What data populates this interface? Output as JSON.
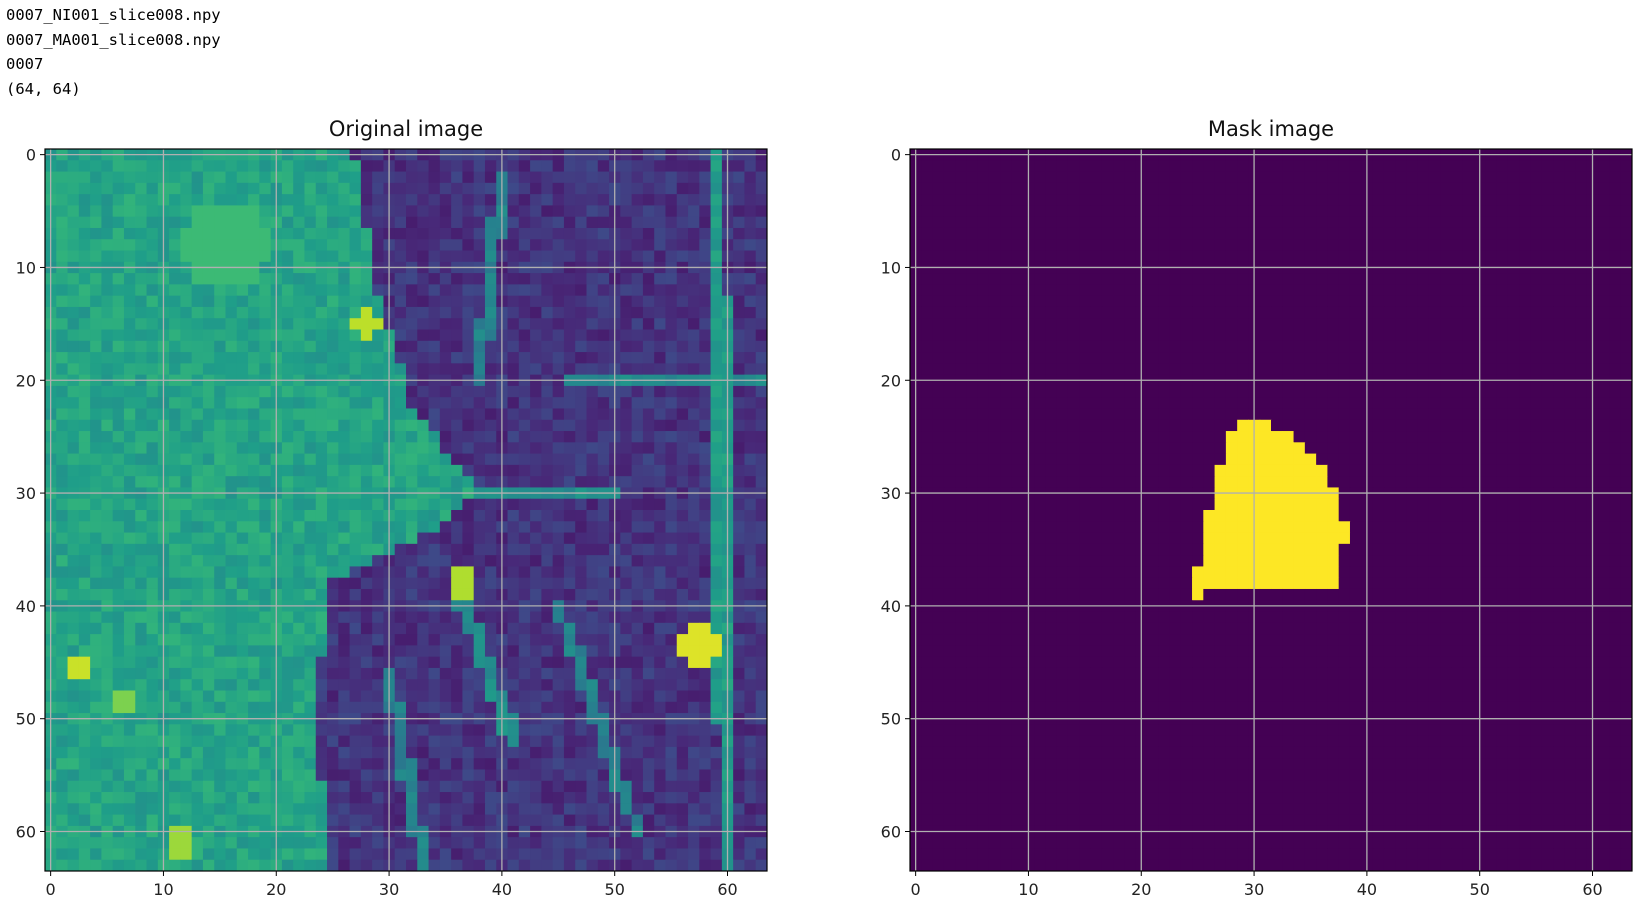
{
  "console": {
    "lines": [
      "0007_NI001_slice008.npy",
      "0007_MA001_slice008.npy",
      "0007",
      "(64, 64)"
    ]
  },
  "colors": {
    "viridis": [
      "#440154",
      "#482878",
      "#3e4a89",
      "#31688e",
      "#26828e",
      "#1f9e89",
      "#35b779",
      "#6ece58",
      "#b5de2b",
      "#fde725"
    ],
    "grid": "#b0b0b0",
    "mask_background": "#440154",
    "mask_foreground": "#fde725"
  },
  "chart_data": [
    {
      "type": "heatmap",
      "title": "Original image",
      "colormap": "viridis",
      "value_range": [
        0,
        1
      ],
      "shape": [
        64,
        64
      ],
      "xlim": [
        -0.5,
        63.5
      ],
      "ylim": [
        63.5,
        -0.5
      ],
      "xticks": [
        0,
        10,
        20,
        30,
        40,
        50,
        60
      ],
      "yticks": [
        0,
        10,
        20,
        30,
        40,
        50,
        60
      ],
      "grid": true,
      "regions": [
        {
          "label": "bright tissue (left)",
          "value": 0.58,
          "shape": "left-of-boundary",
          "boundary_x_by_row": [
            [
              0,
              27
            ],
            [
              12,
              29
            ],
            [
              22,
              32
            ],
            [
              30,
              38
            ],
            [
              34,
              33
            ],
            [
              38,
              25
            ],
            [
              45,
              24
            ],
            [
              55,
              24
            ],
            [
              63,
              25
            ]
          ]
        },
        {
          "label": "dark tissue (right)",
          "value": 0.15
        },
        {
          "label": "ring",
          "value": 0.68,
          "shape": "disc",
          "row": 8,
          "col": 15.5,
          "radius": 4
        },
        {
          "label": "hot spot",
          "value": 0.95,
          "shape": "disc",
          "row": 43.5,
          "col": 57.5,
          "radius": 1.6
        },
        {
          "label": "hot spot",
          "value": 0.92,
          "shape": "disc",
          "row": 45.5,
          "col": 2.5,
          "radius": 1.4
        },
        {
          "label": "hot spot",
          "value": 0.9,
          "shape": "disc",
          "row": 15,
          "col": 28,
          "radius": 1.0
        },
        {
          "label": "hot spot",
          "value": 0.88,
          "shape": "disc",
          "row": 38,
          "col": 36.5,
          "radius": 1.2
        },
        {
          "label": "hot spot",
          "value": 0.85,
          "shape": "disc",
          "row": 61,
          "col": 11.5,
          "radius": 1.4
        },
        {
          "label": "hot spot",
          "value": 0.8,
          "shape": "disc",
          "row": 48.5,
          "col": 6.5,
          "radius": 1.2
        },
        {
          "label": "vessel",
          "value": 0.55,
          "shape": "line",
          "from": [
            0,
            59
          ],
          "to": [
            63,
            60
          ],
          "width": 0.8
        },
        {
          "label": "vessel",
          "value": 0.5,
          "shape": "line",
          "from": [
            30,
            38
          ],
          "to": [
            30,
            50
          ],
          "width": 0.7
        },
        {
          "label": "vessel",
          "value": 0.5,
          "shape": "line",
          "from": [
            38,
            36
          ],
          "to": [
            52,
            41
          ],
          "width": 0.7
        },
        {
          "label": "vessel",
          "value": 0.45,
          "shape": "line",
          "from": [
            2,
            40
          ],
          "to": [
            20,
            38
          ],
          "width": 0.6
        },
        {
          "label": "vessel",
          "value": 0.45,
          "shape": "line",
          "from": [
            40,
            45
          ],
          "to": [
            60,
            52
          ],
          "width": 0.6
        },
        {
          "label": "vessel",
          "value": 0.48,
          "shape": "line",
          "from": [
            20,
            46
          ],
          "to": [
            20,
            63
          ],
          "width": 0.6
        },
        {
          "label": "vessel",
          "value": 0.45,
          "shape": "line",
          "from": [
            46,
            30
          ],
          "to": [
            63,
            33
          ],
          "width": 0.6
        }
      ]
    },
    {
      "type": "heatmap",
      "title": "Mask image",
      "colormap": "viridis",
      "value_range": [
        0,
        1
      ],
      "shape": [
        64,
        64
      ],
      "xlim": [
        -0.5,
        63.5
      ],
      "ylim": [
        63.5,
        -0.5
      ],
      "xticks": [
        0,
        10,
        20,
        30,
        40,
        50,
        60
      ],
      "yticks": [
        0,
        10,
        20,
        30,
        40,
        50,
        60
      ],
      "grid": true,
      "mask_rows": [
        {
          "row": 24,
          "x0": 29,
          "x1": 31
        },
        {
          "row": 25,
          "x0": 28,
          "x1": 33
        },
        {
          "row": 26,
          "x0": 28,
          "x1": 34
        },
        {
          "row": 27,
          "x0": 28,
          "x1": 35
        },
        {
          "row": 28,
          "x0": 27,
          "x1": 36
        },
        {
          "row": 29,
          "x0": 27,
          "x1": 36
        },
        {
          "row": 30,
          "x0": 27,
          "x1": 37
        },
        {
          "row": 31,
          "x0": 27,
          "x1": 37
        },
        {
          "row": 32,
          "x0": 26,
          "x1": 37
        },
        {
          "row": 33,
          "x0": 26,
          "x1": 38
        },
        {
          "row": 34,
          "x0": 26,
          "x1": 38
        },
        {
          "row": 35,
          "x0": 26,
          "x1": 37
        },
        {
          "row": 36,
          "x0": 26,
          "x1": 37
        },
        {
          "row": 37,
          "x0": 25,
          "x1": 37
        },
        {
          "row": 38,
          "x0": 25,
          "x1": 37
        },
        {
          "row": 39,
          "x0": 25,
          "x1": 25
        }
      ],
      "mask_notches": [
        [
          38,
          28
        ],
        [
          38,
          29
        ],
        [
          38,
          33
        ],
        [
          38,
          34
        ],
        [
          38,
          35
        ],
        [
          38,
          36
        ],
        [
          38,
          37
        ]
      ]
    }
  ]
}
